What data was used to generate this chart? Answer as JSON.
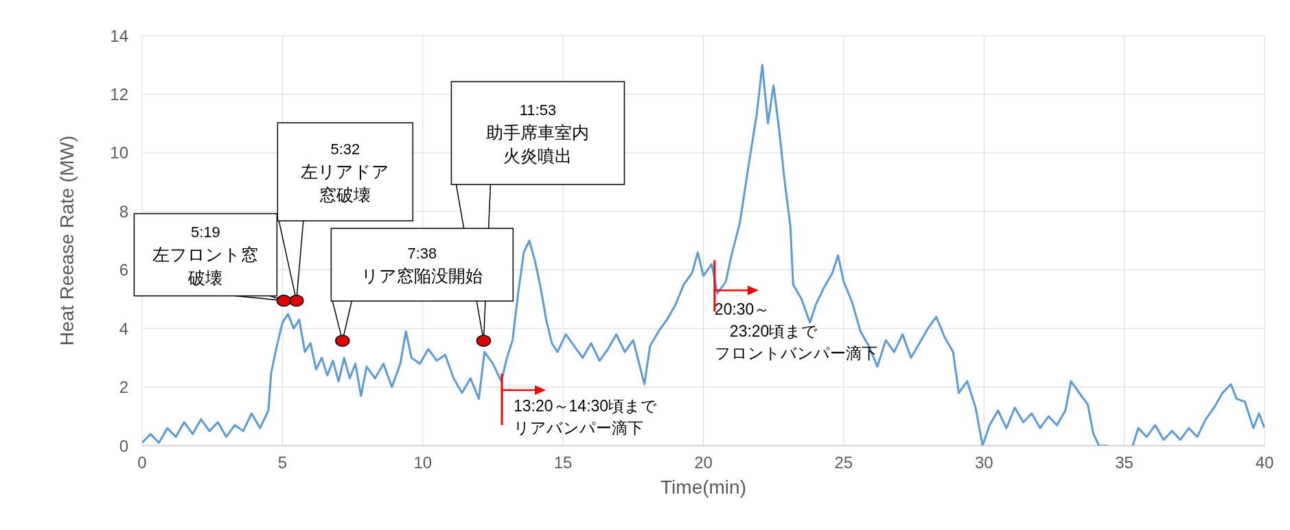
{
  "chart_data": {
    "type": "line",
    "xlabel": "Time(min)",
    "ylabel": "Heat Reease Rate (MW)",
    "xlim": [
      0,
      40
    ],
    "xticks": [
      0,
      5,
      10,
      15,
      20,
      25,
      30,
      35,
      40
    ],
    "ylim": [
      0,
      14
    ],
    "yticks": [
      0,
      2,
      4,
      6,
      8,
      10,
      12,
      14
    ],
    "grid": true,
    "series": [
      {
        "color": "#5b9bd5",
        "x": [
          0,
          0.3,
          0.6,
          0.9,
          1.2,
          1.5,
          1.8,
          2.1,
          2.4,
          2.7,
          3.0,
          3.3,
          3.6,
          3.9,
          4.2,
          4.5,
          4.6,
          4.8,
          5.0,
          5.2,
          5.4,
          5.6,
          5.8,
          6.0,
          6.2,
          6.4,
          6.6,
          6.8,
          7.0,
          7.2,
          7.4,
          7.6,
          7.8,
          8.0,
          8.3,
          8.6,
          8.9,
          9.2,
          9.4,
          9.6,
          9.9,
          10.2,
          10.5,
          10.8,
          11.1,
          11.4,
          11.7,
          12.0,
          12.2,
          12.5,
          12.8,
          13.0,
          13.2,
          13.4,
          13.6,
          13.8,
          14.0,
          14.2,
          14.4,
          14.6,
          14.8,
          15.1,
          15.4,
          15.7,
          16.0,
          16.3,
          16.6,
          16.9,
          17.2,
          17.5,
          17.9,
          18.1,
          18.4,
          18.7,
          19.0,
          19.3,
          19.6,
          19.8,
          20.0,
          20.3,
          20.5,
          20.8,
          21.0,
          21.3,
          21.6,
          21.9,
          22.1,
          22.3,
          22.5,
          22.7,
          22.9,
          23.1,
          23.2,
          23.5,
          23.8,
          24.0,
          24.3,
          24.6,
          24.8,
          25.0,
          25.3,
          25.6,
          25.9,
          26.2,
          26.5,
          26.8,
          27.1,
          27.4,
          27.7,
          28.0,
          28.3,
          28.6,
          28.9,
          29.1,
          29.4,
          29.7,
          29.95,
          30.2,
          30.5,
          30.8,
          31.1,
          31.4,
          31.7,
          32.0,
          32.3,
          32.6,
          32.9,
          33.1,
          33.4,
          33.7,
          33.9,
          34.1,
          34.4,
          34.8,
          35.3,
          35.5,
          35.8,
          36.1,
          36.4,
          36.7,
          37.0,
          37.3,
          37.6,
          37.9,
          38.2,
          38.5,
          38.8,
          39.0,
          39.3,
          39.6,
          39.8,
          40
        ],
        "values": [
          0.1,
          0.4,
          0.1,
          0.6,
          0.3,
          0.8,
          0.4,
          0.9,
          0.5,
          0.8,
          0.3,
          0.7,
          0.5,
          1.1,
          0.6,
          1.2,
          2.5,
          3.4,
          4.2,
          4.5,
          4.0,
          4.3,
          3.2,
          3.5,
          2.6,
          3.0,
          2.4,
          2.9,
          2.2,
          3.0,
          2.3,
          2.8,
          1.7,
          2.7,
          2.3,
          2.8,
          2.0,
          2.8,
          3.9,
          3.0,
          2.8,
          3.3,
          2.9,
          3.1,
          2.3,
          1.8,
          2.3,
          1.6,
          3.2,
          2.8,
          2.2,
          3.0,
          3.6,
          5.2,
          6.6,
          7.0,
          6.3,
          5.4,
          4.3,
          3.5,
          3.2,
          3.8,
          3.4,
          3.0,
          3.5,
          2.9,
          3.3,
          3.8,
          3.2,
          3.6,
          2.1,
          3.4,
          3.9,
          4.3,
          4.8,
          5.5,
          5.9,
          6.6,
          5.8,
          6.2,
          5.2,
          5.6,
          6.5,
          7.6,
          9.5,
          11.3,
          13.0,
          11.0,
          12.3,
          10.8,
          9.0,
          7.5,
          5.5,
          5.0,
          4.2,
          4.8,
          5.4,
          5.9,
          6.5,
          5.6,
          4.9,
          3.9,
          3.4,
          2.7,
          3.6,
          3.2,
          3.8,
          3.0,
          3.5,
          4.0,
          4.4,
          3.7,
          3.2,
          1.8,
          2.2,
          1.3,
          0.0,
          0.7,
          1.2,
          0.6,
          1.3,
          0.8,
          1.1,
          0.6,
          1.0,
          0.7,
          1.2,
          2.2,
          1.8,
          1.4,
          0.4,
          0.0,
          0.0,
          null,
          0.0,
          0.6,
          0.3,
          0.7,
          0.2,
          0.5,
          0.2,
          0.6,
          0.3,
          0.9,
          1.3,
          1.8,
          2.1,
          1.6,
          1.5,
          0.6,
          1.1,
          0.6
        ]
      },
      {
        "type": "scatter",
        "color": "#e00000",
        "marker": "circle",
        "x": [
          5.05,
          5.5,
          7.14,
          12.17
        ],
        "values": [
          4.95,
          4.95,
          3.58,
          3.58
        ]
      }
    ],
    "annotations": [
      {
        "text": "5:19\n左フロント窓破壊",
        "x": 5.05,
        "y": 4.95
      },
      {
        "text": "5:32\n左リアドア窓破壊",
        "x": 5.5,
        "y": 4.95
      },
      {
        "text": "7:38\nリア窓陥没開始",
        "x": 7.14,
        "y": 3.58
      },
      {
        "text": "11:53\n助手席車室内火炎噴出",
        "x": 12.17,
        "y": 3.58
      },
      {
        "text": "13:20～14:30頃までリアバンパー滴下",
        "x": 12.82,
        "y": 2.2
      },
      {
        "text": "20:30～23:20頃までフロントバンパー滴下",
        "x": 20.4,
        "y": 5.7
      }
    ]
  }
}
